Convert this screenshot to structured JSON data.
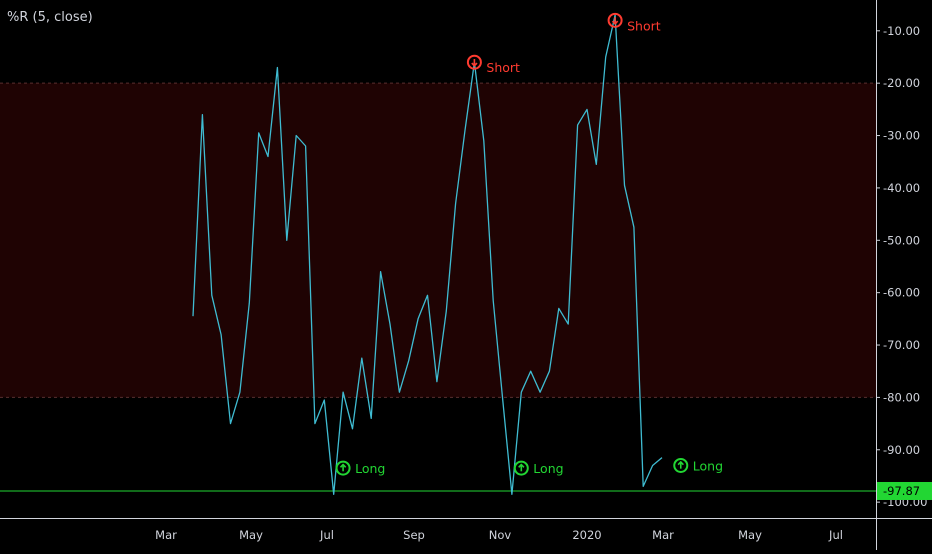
{
  "indicator": {
    "title": "%R (5, close)"
  },
  "colors": {
    "background": "#000000",
    "band_fill": "#1f0303",
    "band_line": "#5a2f2f",
    "series": "#3fbcd2",
    "baseline": "#22d633",
    "axis_text": "#d1d4dc",
    "axis_line": "#d1d4dc",
    "short": "#ff3b30",
    "long": "#22d633",
    "last_value_bg": "#22d633",
    "last_value_text": "#000000"
  },
  "chart_data": {
    "type": "line",
    "ylim": [
      -101.5,
      -4.5
    ],
    "band": {
      "upper": -20,
      "lower": -80
    },
    "baseline": -97.87,
    "last_value_label": "-97.87",
    "y_ticks": [
      -10,
      -20,
      -30,
      -40,
      -50,
      -60,
      -70,
      -80,
      -90,
      -100
    ],
    "y_tick_labels": [
      "-10.00",
      "-20.00",
      "-30.00",
      "-40.00",
      "-50.00",
      "-60.00",
      "-70.00",
      "-80.00",
      "-90.00",
      "-100.00"
    ],
    "x_tick_labels": [
      "Mar",
      "May",
      "Jul",
      "Sep",
      "Nov",
      "2020",
      "Mar",
      "May",
      "Jul"
    ],
    "series": [
      {
        "values": [
          -64.5,
          -26,
          -60.5,
          -68,
          -85,
          -79,
          -62,
          -29.5,
          -34,
          -17,
          -50,
          -30,
          -32,
          -85,
          -80.5,
          -98.5,
          -79,
          -86,
          -72.5,
          -84,
          -56,
          -66,
          -79,
          -73,
          -65,
          -60.5,
          -77,
          -63.5,
          -43,
          -29,
          -16,
          -31,
          -61.5,
          -80,
          -98.5,
          -79,
          -75,
          -79,
          -75,
          -63,
          -66,
          -28,
          -25,
          -35.5,
          -15,
          -7,
          -39.5,
          -47.5,
          -97,
          -93,
          -91.5
        ]
      }
    ],
    "annotations": [
      {
        "kind": "short",
        "label": "Short",
        "index": 30,
        "value": -16
      },
      {
        "kind": "short",
        "label": "Short",
        "index": 45,
        "value": -8
      },
      {
        "kind": "long",
        "label": "Long",
        "index": 16,
        "value": -93.5
      },
      {
        "kind": "long",
        "label": "Long",
        "index": 35,
        "value": -93.5
      },
      {
        "kind": "long",
        "label": "Long",
        "index": 52,
        "value": -93
      }
    ]
  }
}
